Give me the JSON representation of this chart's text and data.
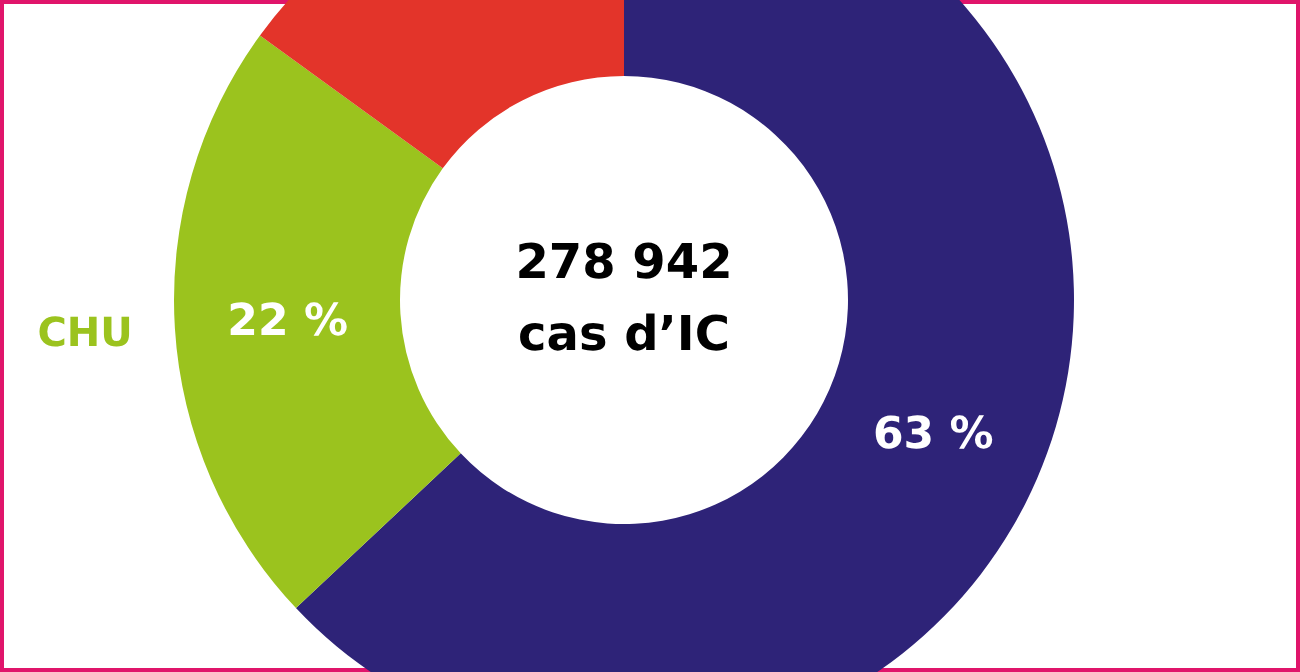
{
  "chart_data": {
    "type": "donut",
    "categories": [
      null,
      "CHU",
      null
    ],
    "values": [
      63,
      22,
      15
    ],
    "colors": [
      "#2e2378",
      "#9bc31e",
      "#e3342a"
    ],
    "value_labels": [
      "63 %",
      "22 %",
      null
    ],
    "annotations": [
      "278 942",
      "cas d’IC"
    ]
  }
}
